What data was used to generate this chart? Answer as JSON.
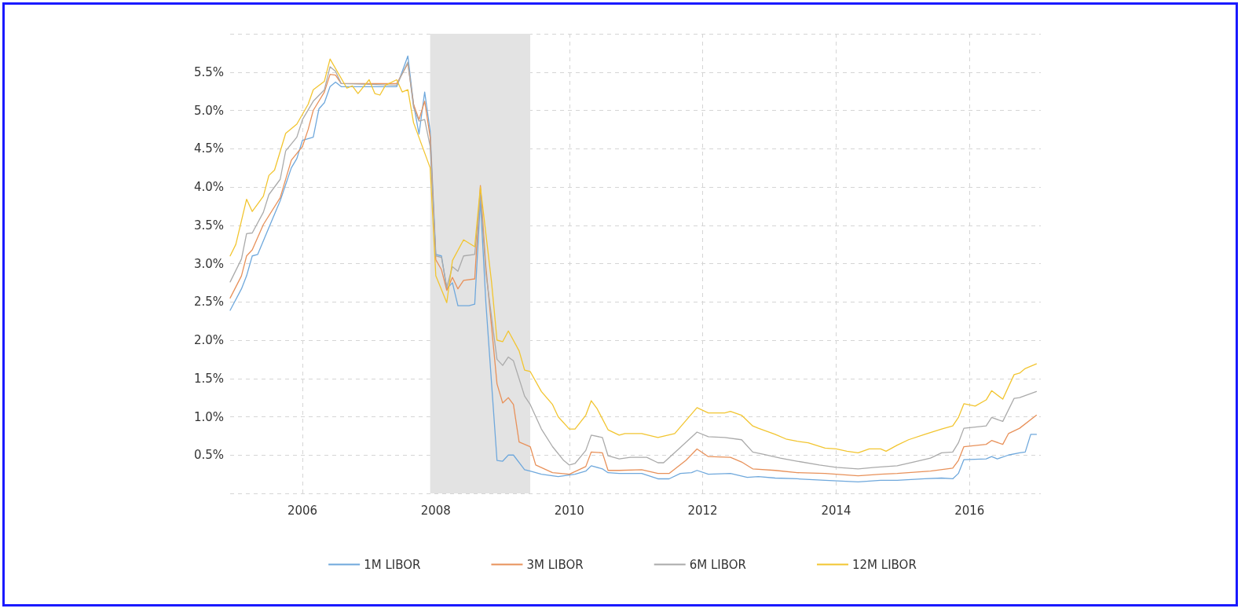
{
  "chart_data": {
    "type": "line",
    "xlim": [
      "2004-12-01",
      "2017-01-25"
    ],
    "xticks": [
      "2006",
      "2008",
      "2010",
      "2012",
      "2014",
      "2016"
    ],
    "ylim": [
      0,
      6
    ],
    "yticks": [
      {
        "value": 0,
        "label": null
      },
      {
        "value": 0.5,
        "label": "0.5%"
      },
      {
        "value": 1,
        "label": "1.0%"
      },
      {
        "value": 1.5,
        "label": "1.5%"
      },
      {
        "value": 2,
        "label": "2.0%"
      },
      {
        "value": 2.5,
        "label": "2.5%"
      },
      {
        "value": 3,
        "label": "3.0%"
      },
      {
        "value": 3.5,
        "label": "3.5%"
      },
      {
        "value": 4,
        "label": "4.0%"
      },
      {
        "value": 4.5,
        "label": "4.5%"
      },
      {
        "value": 5,
        "label": "5.0%"
      },
      {
        "value": 5.5,
        "label": "5.5%"
      },
      {
        "value": 6,
        "label": null
      }
    ],
    "grid": true,
    "legend": "bottom",
    "marker": "none",
    "bands": [
      {
        "axis": "x",
        "from": "2007-12",
        "to": "2009-06",
        "color": "#e3e3e3"
      }
    ],
    "series": [
      {
        "name": "1M LIBOR",
        "color": "#6fa8dc",
        "x": [
          "2004-12",
          "2005-02",
          "2005-03",
          "2005-04",
          "2005-05",
          "2005-07",
          "2005-09",
          "2005-11",
          "2005-12",
          "2006-01",
          "2006-03",
          "2006-04",
          "2006-05",
          "2006-06",
          "2006-07",
          "2006-08",
          "2006-11",
          "2007-06",
          "2007-08",
          "2007-09",
          "2007-10",
          "2007-11",
          "2007-12",
          "2008-01",
          "2008-02",
          "2008-03",
          "2008-04",
          "2008-05",
          "2008-07",
          "2008-08",
          "2008-09",
          "2008-10",
          "2008-12",
          "2009-01",
          "2009-02",
          "2009-03",
          "2009-05",
          "2009-06",
          "2009-08",
          "2009-11",
          "2010-02",
          "2010-04",
          "2010-05",
          "2010-07",
          "2010-08",
          "2010-10",
          "2011-02",
          "2011-05",
          "2011-07",
          "2011-09",
          "2011-11",
          "2011-12",
          "2012-02",
          "2012-06",
          "2012-09",
          "2012-11",
          "2013-02",
          "2013-06",
          "2013-11",
          "2014-05",
          "2014-09",
          "2014-12",
          "2015-05",
          "2015-08",
          "2015-10",
          "2015-11",
          "2015-12",
          "2016-04",
          "2016-05",
          "2016-06",
          "2016-08",
          "2016-10",
          "2016-11",
          "2016-12",
          "2017-01"
        ],
        "values": [
          2.39,
          2.67,
          2.84,
          3.1,
          3.12,
          3.47,
          3.82,
          4.25,
          4.37,
          4.61,
          4.65,
          5.02,
          5.1,
          5.31,
          5.37,
          5.31,
          5.31,
          5.31,
          5.71,
          5.08,
          4.69,
          5.24,
          4.73,
          3.12,
          3.1,
          2.67,
          2.75,
          2.45,
          2.45,
          2.47,
          3.82,
          2.49,
          0.43,
          0.42,
          0.5,
          0.5,
          0.31,
          0.29,
          0.25,
          0.22,
          0.25,
          0.29,
          0.36,
          0.32,
          0.27,
          0.26,
          0.26,
          0.19,
          0.19,
          0.26,
          0.27,
          0.3,
          0.25,
          0.26,
          0.21,
          0.22,
          0.2,
          0.19,
          0.17,
          0.15,
          0.17,
          0.17,
          0.19,
          0.2,
          0.19,
          0.26,
          0.44,
          0.45,
          0.48,
          0.45,
          0.5,
          0.53,
          0.54,
          0.77,
          0.77
        ]
      },
      {
        "name": "3M LIBOR",
        "color": "#e8915a",
        "x": [
          "2004-12",
          "2005-02",
          "2005-03",
          "2005-04",
          "2005-06",
          "2005-09",
          "2005-11",
          "2006-01",
          "2006-02",
          "2006-03",
          "2006-05",
          "2006-06",
          "2006-07",
          "2006-08",
          "2007-01",
          "2007-06",
          "2007-08",
          "2007-09",
          "2007-10",
          "2007-11",
          "2007-12",
          "2008-01",
          "2008-02",
          "2008-03",
          "2008-04",
          "2008-05",
          "2008-06",
          "2008-08",
          "2008-09",
          "2008-10",
          "2008-12",
          "2009-01",
          "2009-02",
          "2009-03",
          "2009-04",
          "2009-06",
          "2009-07",
          "2009-10",
          "2010-01",
          "2010-04",
          "2010-05",
          "2010-07",
          "2010-08",
          "2010-10",
          "2011-02",
          "2011-05",
          "2011-07",
          "2011-10",
          "2011-12",
          "2012-02",
          "2012-06",
          "2012-08",
          "2012-10",
          "2013-02",
          "2013-06",
          "2013-11",
          "2014-05",
          "2014-09",
          "2014-12",
          "2015-06",
          "2015-10",
          "2015-11",
          "2015-12",
          "2016-04",
          "2016-05",
          "2016-07",
          "2016-08",
          "2016-10",
          "2017-01"
        ],
        "values": [
          2.55,
          2.84,
          3.1,
          3.18,
          3.51,
          3.86,
          4.35,
          4.53,
          4.75,
          5.0,
          5.24,
          5.47,
          5.46,
          5.35,
          5.35,
          5.35,
          5.61,
          5.08,
          4.88,
          5.12,
          4.65,
          3.05,
          2.92,
          2.65,
          2.82,
          2.67,
          2.78,
          2.8,
          4.02,
          2.96,
          1.43,
          1.18,
          1.25,
          1.16,
          0.67,
          0.61,
          0.37,
          0.27,
          0.25,
          0.35,
          0.54,
          0.53,
          0.3,
          0.3,
          0.31,
          0.26,
          0.26,
          0.43,
          0.58,
          0.48,
          0.47,
          0.41,
          0.32,
          0.3,
          0.27,
          0.26,
          0.23,
          0.25,
          0.26,
          0.29,
          0.33,
          0.43,
          0.61,
          0.64,
          0.69,
          0.64,
          0.78,
          0.85,
          1.02
        ]
      },
      {
        "name": "6M LIBOR",
        "color": "#aaaaaa",
        "x": [
          "2004-12",
          "2005-02",
          "2005-03",
          "2005-04",
          "2005-06",
          "2005-07",
          "2005-09",
          "2005-10",
          "2005-12",
          "2006-01",
          "2006-03",
          "2006-05",
          "2006-06",
          "2006-07",
          "2006-08",
          "2007-06",
          "2007-08",
          "2007-09",
          "2007-10",
          "2007-11",
          "2007-12",
          "2008-01",
          "2008-02",
          "2008-03",
          "2008-04",
          "2008-05",
          "2008-06",
          "2008-08",
          "2008-09",
          "2008-10",
          "2008-12",
          "2009-01",
          "2009-02",
          "2009-03",
          "2009-05",
          "2009-06",
          "2009-08",
          "2009-10",
          "2009-12",
          "2010-01",
          "2010-02",
          "2010-04",
          "2010-05",
          "2010-07",
          "2010-08",
          "2010-10",
          "2010-12",
          "2011-03",
          "2011-05",
          "2011-06",
          "2011-09",
          "2011-12",
          "2012-02",
          "2012-05",
          "2012-08",
          "2012-10",
          "2012-12",
          "2013-03",
          "2013-06",
          "2013-10",
          "2014-01",
          "2014-05",
          "2014-08",
          "2014-12",
          "2015-03",
          "2015-06",
          "2015-08",
          "2015-10",
          "2015-11",
          "2015-12",
          "2016-04",
          "2016-05",
          "2016-07",
          "2016-09",
          "2016-10",
          "2017-01"
        ],
        "values": [
          2.76,
          3.06,
          3.39,
          3.4,
          3.67,
          3.9,
          4.1,
          4.47,
          4.65,
          4.88,
          5.12,
          5.27,
          5.57,
          5.51,
          5.35,
          5.33,
          5.63,
          5.04,
          4.86,
          4.88,
          4.53,
          3.1,
          3.08,
          2.69,
          2.96,
          2.9,
          3.1,
          3.12,
          3.9,
          2.88,
          1.75,
          1.67,
          1.78,
          1.73,
          1.27,
          1.16,
          0.84,
          0.61,
          0.43,
          0.37,
          0.39,
          0.56,
          0.76,
          0.73,
          0.49,
          0.45,
          0.47,
          0.47,
          0.4,
          0.4,
          0.6,
          0.8,
          0.74,
          0.73,
          0.7,
          0.54,
          0.51,
          0.46,
          0.42,
          0.37,
          0.34,
          0.32,
          0.34,
          0.36,
          0.41,
          0.46,
          0.53,
          0.54,
          0.66,
          0.85,
          0.88,
          0.99,
          0.94,
          1.24,
          1.25,
          1.33
        ]
      },
      {
        "name": "12M LIBOR",
        "color": "#f2c530",
        "x": [
          "2004-12",
          "2005-01",
          "2005-03",
          "2005-04",
          "2005-06",
          "2005-07",
          "2005-08",
          "2005-10",
          "2005-12",
          "2006-02",
          "2006-03",
          "2006-05",
          "2006-06",
          "2006-09",
          "2006-10",
          "2006-11",
          "2007-01",
          "2007-02",
          "2007-03",
          "2007-04",
          "2007-06",
          "2007-07",
          "2007-08",
          "2007-09",
          "2007-12",
          "2008-01",
          "2008-03",
          "2008-04",
          "2008-06",
          "2008-08",
          "2008-09",
          "2008-11",
          "2008-12",
          "2009-01",
          "2009-02",
          "2009-04",
          "2009-05",
          "2009-06",
          "2009-08",
          "2009-10",
          "2009-11",
          "2010-01",
          "2010-02",
          "2010-04",
          "2010-05",
          "2010-06",
          "2010-08",
          "2010-10",
          "2010-11",
          "2011-02",
          "2011-05",
          "2011-08",
          "2011-10",
          "2011-12",
          "2012-02",
          "2012-05",
          "2012-06",
          "2012-08",
          "2012-10",
          "2012-11",
          "2013-02",
          "2013-04",
          "2013-06",
          "2013-08",
          "2013-11",
          "2014-01",
          "2014-03",
          "2014-05",
          "2014-07",
          "2014-09",
          "2014-10",
          "2014-12",
          "2015-02",
          "2015-05",
          "2015-08",
          "2015-10",
          "2015-11",
          "2015-12",
          "2016-02",
          "2016-04",
          "2016-05",
          "2016-07",
          "2016-09",
          "2016-10",
          "2016-11",
          "2017-01"
        ],
        "values": [
          3.1,
          3.25,
          3.84,
          3.68,
          3.88,
          4.15,
          4.22,
          4.7,
          4.82,
          5.08,
          5.27,
          5.38,
          5.67,
          5.29,
          5.32,
          5.22,
          5.4,
          5.22,
          5.2,
          5.33,
          5.4,
          5.24,
          5.27,
          4.84,
          4.25,
          2.84,
          2.49,
          3.04,
          3.31,
          3.22,
          4.0,
          2.76,
          2.0,
          1.98,
          2.12,
          1.86,
          1.61,
          1.59,
          1.33,
          1.16,
          1.0,
          0.84,
          0.84,
          1.02,
          1.21,
          1.11,
          0.83,
          0.76,
          0.78,
          0.78,
          0.73,
          0.78,
          0.95,
          1.12,
          1.05,
          1.05,
          1.07,
          1.02,
          0.88,
          0.85,
          0.77,
          0.71,
          0.68,
          0.66,
          0.59,
          0.58,
          0.55,
          0.53,
          0.58,
          0.58,
          0.55,
          0.63,
          0.7,
          0.77,
          0.84,
          0.88,
          0.99,
          1.17,
          1.14,
          1.22,
          1.34,
          1.23,
          1.55,
          1.57,
          1.63,
          1.69
        ]
      }
    ]
  }
}
